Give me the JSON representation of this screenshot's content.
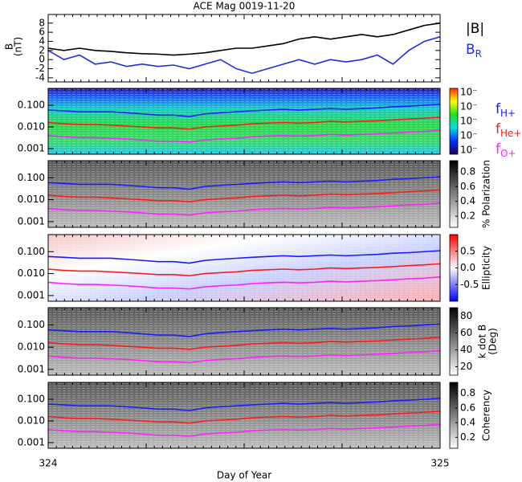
{
  "chart_data": [
    {
      "type": "line",
      "title": "ACE Mag 0019-11-20",
      "ylabel": "B",
      "ylabel2": "(nT)",
      "x": [
        324,
        324.04,
        324.08,
        324.12,
        324.16,
        324.2,
        324.24,
        324.28,
        324.32,
        324.36,
        324.4,
        324.44,
        324.48,
        324.52,
        324.56,
        324.6,
        324.64,
        324.68,
        324.72,
        324.76,
        324.8,
        324.84,
        324.88,
        324.92,
        324.96,
        325
      ],
      "xlim": [
        324,
        325
      ],
      "xticks": [
        324,
        325
      ],
      "xlabel": "Day of Year",
      "ylim": [
        -4.9,
        9.9
      ],
      "yticks": [
        -4,
        -2,
        0,
        2,
        4,
        6,
        8
      ],
      "series": [
        {
          "name": "|B|",
          "color": "#000000",
          "values": [
            2.5,
            2,
            2.5,
            2,
            1.8,
            1.5,
            1.3,
            1.2,
            1,
            1.2,
            1.5,
            2,
            2.5,
            2.5,
            3,
            3.5,
            4.5,
            5,
            4.5,
            5,
            5.5,
            5,
            5.5,
            6.5,
            7.5,
            8
          ]
        },
        {
          "name": "B",
          "name_sub": "R",
          "color": "#1f2fe0",
          "values": [
            2,
            0,
            1,
            -1,
            -0.5,
            -1.5,
            -1,
            -1.5,
            -1.2,
            -2,
            -1,
            0,
            -2,
            -3,
            -2,
            -1,
            0,
            -1,
            0,
            -0.5,
            0,
            1,
            -1,
            2,
            4,
            5
          ]
        }
      ]
    },
    {
      "type": "spectrogram",
      "palette": "rainbow",
      "log_y": true,
      "ylim": [
        0.00055,
        0.6
      ],
      "yticks": [
        {
          "value": 0.1,
          "label": "0.100"
        },
        {
          "value": 0.01,
          "label": "0.010"
        },
        0.001
      ],
      "colorbar_labels": [
        "10⁻",
        "10⁻",
        "10⁻",
        "10⁻",
        "10⁻"
      ],
      "series": [
        {
          "name": "f",
          "name_sub": "H+",
          "color": "#1a1aff",
          "values": [
            0.06,
            0.055,
            0.05,
            0.05,
            0.05,
            0.045,
            0.04,
            0.035,
            0.035,
            0.03,
            0.04,
            0.045,
            0.05,
            0.055,
            0.06,
            0.065,
            0.06,
            0.065,
            0.07,
            0.065,
            0.07,
            0.075,
            0.085,
            0.09,
            0.1,
            0.11
          ]
        },
        {
          "name": "f",
          "name_sub": "He+",
          "color": "#ff1a1a",
          "values": [
            0.016,
            0.014,
            0.013,
            0.013,
            0.012,
            0.011,
            0.01,
            0.009,
            0.009,
            0.008,
            0.01,
            0.011,
            0.012,
            0.014,
            0.015,
            0.016,
            0.015,
            0.016,
            0.018,
            0.017,
            0.018,
            0.019,
            0.021,
            0.023,
            0.025,
            0.028
          ]
        },
        {
          "name": "f",
          "name_sub": "O+",
          "color": "#ff22ff",
          "values": [
            0.004,
            0.0035,
            0.0032,
            0.0032,
            0.003,
            0.0028,
            0.0025,
            0.0022,
            0.0022,
            0.002,
            0.0025,
            0.0028,
            0.003,
            0.0035,
            0.0038,
            0.004,
            0.0038,
            0.004,
            0.0045,
            0.0042,
            0.0045,
            0.0048,
            0.0052,
            0.0058,
            0.0062,
            0.007
          ]
        }
      ]
    },
    {
      "type": "spectrogram",
      "palette": "gray",
      "log_y": true,
      "ylim": [
        0.00055,
        0.6
      ],
      "yticks": [
        {
          "value": 0.1,
          "label": "0.100"
        },
        {
          "value": 0.01,
          "label": "0.010"
        },
        0.001
      ],
      "colorbar": {
        "label": "% Polarization",
        "lim": [
          0.05,
          0.95
        ],
        "ticks": [
          0.2,
          0.4,
          0.6,
          0.8
        ]
      }
    },
    {
      "type": "spectrogram",
      "palette": "redblue",
      "log_y": true,
      "ylim": [
        0.00055,
        0.6
      ],
      "yticks": [
        {
          "value": 0.1,
          "label": "0.100"
        },
        {
          "value": 0.01,
          "label": "0.010"
        },
        0.001
      ],
      "colorbar": {
        "label": "Ellipticity",
        "lim": [
          -1,
          1
        ],
        "ticks": [
          -0.5,
          {
            "value": 0,
            "label": "0.0"
          },
          0.5
        ]
      }
    },
    {
      "type": "spectrogram",
      "palette": "gray",
      "log_y": true,
      "ylim": [
        0.00055,
        0.6
      ],
      "yticks": [
        {
          "value": 0.1,
          "label": "0.100"
        },
        {
          "value": 0.01,
          "label": "0.010"
        },
        0.001
      ],
      "colorbar": {
        "label": "k dot B",
        "label2": "(Deg)",
        "lim": [
          10,
          90
        ],
        "ticks": [
          20,
          40,
          60,
          80
        ]
      }
    },
    {
      "type": "spectrogram",
      "palette": "gray",
      "log_y": true,
      "ylim": [
        0.00055,
        0.6
      ],
      "yticks": [
        {
          "value": 0.1,
          "label": "0.100"
        },
        {
          "value": 0.01,
          "label": "0.010"
        },
        0.001
      ],
      "colorbar": {
        "label": "Coherency",
        "lim": [
          0.05,
          0.95
        ],
        "ticks": [
          0.2,
          0.4,
          0.6,
          0.8
        ]
      }
    }
  ]
}
